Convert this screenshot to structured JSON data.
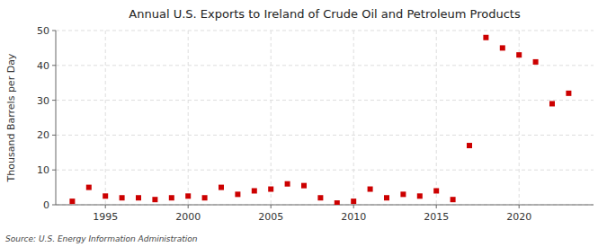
{
  "chart_data": {
    "type": "scatter",
    "title": "Annual U.S. Exports to Ireland of Crude Oil and Petroleum Products",
    "ylabel": "Thousand Barrels per Day",
    "source": "Source: U.S. Energy Information Administration",
    "x": [
      1993,
      1994,
      1995,
      1996,
      1997,
      1998,
      1999,
      2000,
      2001,
      2002,
      2003,
      2004,
      2005,
      2006,
      2007,
      2008,
      2009,
      2010,
      2011,
      2012,
      2013,
      2014,
      2015,
      2016,
      2017,
      2018,
      2019,
      2020,
      2021,
      2022,
      2023
    ],
    "values": [
      1.0,
      5.0,
      2.5,
      2.0,
      2.0,
      1.5,
      2.0,
      2.5,
      2.0,
      5.0,
      3.0,
      4.0,
      4.5,
      6.0,
      5.5,
      2.0,
      0.5,
      1.0,
      4.5,
      2.0,
      3.0,
      2.5,
      4.0,
      1.5,
      17.0,
      48.0,
      45.0,
      43.0,
      41.0,
      29.0,
      32.0
    ],
    "color": "#cc0000",
    "marker": "square",
    "xlim": [
      1992.0,
      2024.5
    ],
    "xticks": [
      1995,
      2000,
      2005,
      2010,
      2015,
      2020
    ],
    "ylim": [
      0,
      50
    ],
    "yticks": [
      0,
      10,
      20,
      30,
      40,
      50
    ],
    "grid": true
  }
}
